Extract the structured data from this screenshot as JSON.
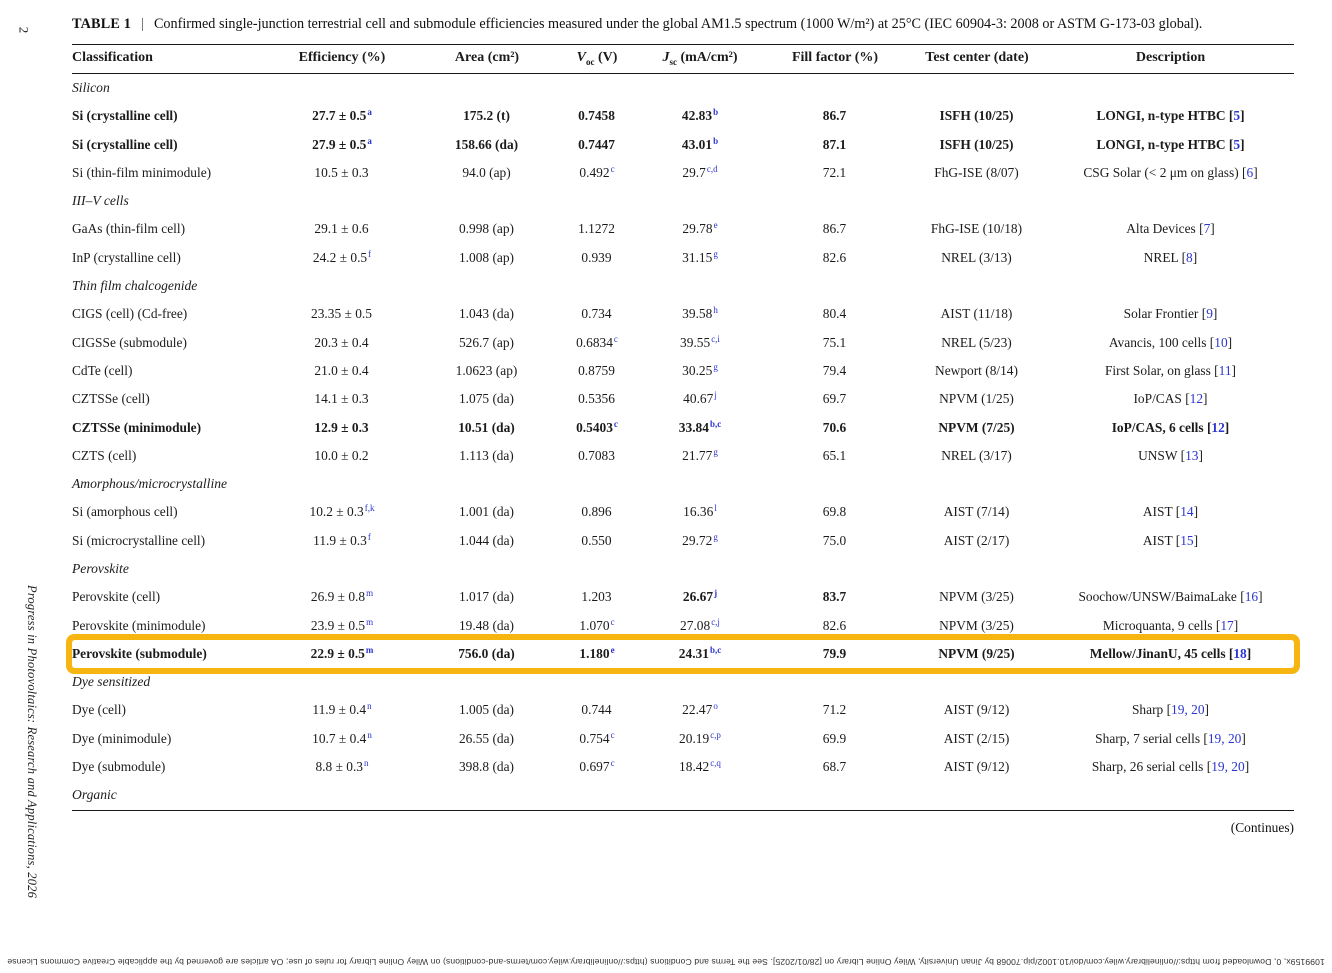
{
  "colors": {
    "highlight_gold": "#F7B512",
    "link_blue": "#2b35cf"
  },
  "page": {
    "page_number": "2",
    "journal_sidebar": "Progress in Photovoltaics: Research and Applications, 2026",
    "footer_rotated": "1099159x, 0, Downloaded from https://onlinelibrary.wiley.com/doi/10.1002/pip.70068 by Jinan University, Wiley Online Library on [28/01/2025]. See the Terms and Conditions (https://onlinelibrary.wiley.com/terms-and-conditions) on Wiley Online Library for rules of use; OA articles are governed by the applicable Creative Commons License",
    "continues": "(Continues)"
  },
  "table": {
    "label": "TABLE 1",
    "separator": "|",
    "caption": "Confirmed single-junction terrestrial cell and submodule efficiencies measured under the global AM1.5 spectrum (1000 W/m²) at 25°C (IEC 60904-3: 2008 or ASTM G-173-03 global).",
    "header": {
      "classification": "Classification",
      "efficiency": "Efficiency (%)",
      "area": "Area (cm²)",
      "voc_pre": "V",
      "voc_sub": "oc",
      "voc_post": " (V)",
      "jsc_pre": "J",
      "jsc_sub": "sc",
      "jsc_post": " (mA/cm²)",
      "fill_factor": "Fill factor (%)",
      "test_center": "Test center (date)",
      "description": "Description"
    },
    "sections": [
      {
        "name": "Silicon",
        "rows": [
          {
            "cls": "Si (crystalline cell)",
            "bold": true,
            "eff": {
              "t": "27.7 ± 0.5",
              "s": "a"
            },
            "area": {
              "t": "175.2 (t)"
            },
            "voc": {
              "t": "0.7458"
            },
            "jsc": {
              "t": "42.83",
              "s": "b"
            },
            "ff": {
              "t": "86.7"
            },
            "tc": {
              "t": "ISFH (10/25)"
            },
            "desc": {
              "t": "LONGI, n-type HTBC",
              "refs": "5"
            }
          },
          {
            "cls": "Si (crystalline cell)",
            "bold": true,
            "eff": {
              "t": "27.9 ± 0.5",
              "s": "a"
            },
            "area": {
              "t": "158.66 (da)"
            },
            "voc": {
              "t": "0.7447"
            },
            "jsc": {
              "t": "43.01",
              "s": "b"
            },
            "ff": {
              "t": "87.1"
            },
            "tc": {
              "t": "ISFH (10/25)"
            },
            "desc": {
              "t": "LONGI, n-type HTBC",
              "refs": "5"
            }
          },
          {
            "cls": "Si (thin-film minimodule)",
            "eff": {
              "t": "10.5 ± 0.3"
            },
            "area": {
              "t": "94.0 (ap)"
            },
            "voc": {
              "t": "0.492",
              "s": "c"
            },
            "jsc": {
              "t": "29.7",
              "s": "c,d"
            },
            "ff": {
              "t": "72.1"
            },
            "tc": {
              "t": "FhG-ISE (8/07)"
            },
            "desc": {
              "t": "CSG Solar (< 2 μm on glass)",
              "refs": "6"
            }
          }
        ]
      },
      {
        "name": "III–V cells",
        "rows": [
          {
            "cls": "GaAs (thin-film cell)",
            "eff": {
              "t": "29.1 ± 0.6"
            },
            "area": {
              "t": "0.998 (ap)"
            },
            "voc": {
              "t": "1.1272"
            },
            "jsc": {
              "t": "29.78",
              "s": "e"
            },
            "ff": {
              "t": "86.7"
            },
            "tc": {
              "t": "FhG-ISE (10/18)"
            },
            "desc": {
              "t": "Alta Devices",
              "refs": "7"
            }
          },
          {
            "cls": "InP (crystalline cell)",
            "eff": {
              "t": "24.2 ± 0.5",
              "s": "f"
            },
            "area": {
              "t": "1.008 (ap)"
            },
            "voc": {
              "t": "0.939"
            },
            "jsc": {
              "t": "31.15",
              "s": "g"
            },
            "ff": {
              "t": "82.6"
            },
            "tc": {
              "t": "NREL (3/13)"
            },
            "desc": {
              "t": "NREL",
              "refs": "8"
            }
          }
        ]
      },
      {
        "name": "Thin film chalcogenide",
        "rows": [
          {
            "cls": "CIGS (cell) (Cd-free)",
            "eff": {
              "t": "23.35 ± 0.5"
            },
            "area": {
              "t": "1.043 (da)"
            },
            "voc": {
              "t": "0.734"
            },
            "jsc": {
              "t": "39.58",
              "s": "h"
            },
            "ff": {
              "t": "80.4"
            },
            "tc": {
              "t": "AIST (11/18)"
            },
            "desc": {
              "t": "Solar Frontier",
              "refs": "9"
            }
          },
          {
            "cls": "CIGSSe (submodule)",
            "eff": {
              "t": "20.3 ± 0.4"
            },
            "area": {
              "t": "526.7 (ap)"
            },
            "voc": {
              "t": "0.6834",
              "s": "c"
            },
            "jsc": {
              "t": "39.55",
              "s": "c,i"
            },
            "ff": {
              "t": "75.1"
            },
            "tc": {
              "t": "NREL (5/23)"
            },
            "desc": {
              "t": "Avancis, 100 cells",
              "refs": "10"
            }
          },
          {
            "cls": "CdTe (cell)",
            "eff": {
              "t": "21.0 ± 0.4"
            },
            "area": {
              "t": "1.0623 (ap)"
            },
            "voc": {
              "t": "0.8759"
            },
            "jsc": {
              "t": "30.25",
              "s": "g"
            },
            "ff": {
              "t": "79.4"
            },
            "tc": {
              "t": "Newport (8/14)"
            },
            "desc": {
              "t": "First Solar, on glass",
              "refs": "11"
            }
          },
          {
            "cls": "CZTSSe (cell)",
            "eff": {
              "t": "14.1 ± 0.3"
            },
            "area": {
              "t": "1.075 (da)"
            },
            "voc": {
              "t": "0.5356"
            },
            "jsc": {
              "t": "40.67",
              "s": "j"
            },
            "ff": {
              "t": "69.7"
            },
            "tc": {
              "t": "NPVM (1/25)"
            },
            "desc": {
              "t": "IoP/CAS",
              "refs": "12"
            }
          },
          {
            "cls": "CZTSSe (minimodule)",
            "bold": true,
            "eff": {
              "t": "12.9 ± 0.3"
            },
            "area": {
              "t": "10.51 (da)"
            },
            "voc": {
              "t": "0.5403",
              "s": "c"
            },
            "jsc": {
              "t": "33.84",
              "s": "b,c"
            },
            "ff": {
              "t": "70.6"
            },
            "tc": {
              "t": "NPVM (7/25)"
            },
            "desc": {
              "t": "IoP/CAS, 6 cells",
              "refs": "12"
            }
          },
          {
            "cls": "CZTS (cell)",
            "eff": {
              "t": "10.0 ± 0.2"
            },
            "area": {
              "t": "1.113 (da)"
            },
            "voc": {
              "t": "0.7083"
            },
            "jsc": {
              "t": "21.77",
              "s": "g"
            },
            "ff": {
              "t": "65.1"
            },
            "tc": {
              "t": "NREL (3/17)"
            },
            "desc": {
              "t": "UNSW",
              "refs": "13"
            }
          }
        ]
      },
      {
        "name": "Amorphous/microcrystalline",
        "rows": [
          {
            "cls": "Si (amorphous cell)",
            "eff": {
              "t": "10.2 ± 0.3",
              "s": "f,k"
            },
            "area": {
              "t": "1.001 (da)"
            },
            "voc": {
              "t": "0.896"
            },
            "jsc": {
              "t": "16.36",
              "s": "l"
            },
            "ff": {
              "t": "69.8"
            },
            "tc": {
              "t": "AIST (7/14)"
            },
            "desc": {
              "t": "AIST",
              "refs": "14"
            }
          },
          {
            "cls": "Si (microcrystalline cell)",
            "eff": {
              "t": "11.9 ± 0.3",
              "s": "f"
            },
            "area": {
              "t": "1.044 (da)"
            },
            "voc": {
              "t": "0.550"
            },
            "jsc": {
              "t": "29.72",
              "s": "g"
            },
            "ff": {
              "t": "75.0"
            },
            "tc": {
              "t": "AIST (2/17)"
            },
            "desc": {
              "t": "AIST",
              "refs": "15"
            }
          }
        ]
      },
      {
        "name": "Perovskite",
        "rows": [
          {
            "cls": "Perovskite (cell)",
            "eff": {
              "t": "26.9 ± 0.8",
              "s": "m"
            },
            "area": {
              "t": "1.017 (da)"
            },
            "voc": {
              "t": "1.203"
            },
            "jsc": {
              "t": "26.67",
              "s": "j",
              "b": true
            },
            "ff": {
              "t": "83.7",
              "b": true
            },
            "tc": {
              "t": "NPVM (3/25)"
            },
            "desc": {
              "t": "Soochow/UNSW/BaimaLake",
              "refs": "16"
            }
          },
          {
            "cls": "Perovskite (minimodule)",
            "eff": {
              "t": "23.9 ± 0.5",
              "s": "m"
            },
            "area": {
              "t": "19.48 (da)"
            },
            "voc": {
              "t": "1.070",
              "s": "c"
            },
            "jsc": {
              "t": "27.08",
              "s": "c,j"
            },
            "ff": {
              "t": "82.6"
            },
            "tc": {
              "t": "NPVM (3/25)"
            },
            "desc": {
              "t": "Microquanta, 9 cells",
              "refs": "17"
            }
          },
          {
            "cls": "Perovskite (submodule)",
            "bold": true,
            "hl": true,
            "eff": {
              "t": "22.9 ± 0.5",
              "s": "m"
            },
            "area": {
              "t": "756.0 (da)"
            },
            "voc": {
              "t": "1.180",
              "s": "e"
            },
            "jsc": {
              "t": "24.31",
              "s": "b,c"
            },
            "ff": {
              "t": "79.9"
            },
            "tc": {
              "t": "NPVM (9/25)"
            },
            "desc": {
              "t": "Mellow/JinanU, 45 cells",
              "refs": "18"
            }
          }
        ]
      },
      {
        "name": "Dye sensitized",
        "rows": [
          {
            "cls": "Dye (cell)",
            "eff": {
              "t": "11.9 ± 0.4",
              "s": "n"
            },
            "area": {
              "t": "1.005 (da)"
            },
            "voc": {
              "t": "0.744"
            },
            "jsc": {
              "t": "22.47",
              "s": "o"
            },
            "ff": {
              "t": "71.2"
            },
            "tc": {
              "t": "AIST (9/12)"
            },
            "desc": {
              "t": "Sharp",
              "refs": "19, 20"
            }
          },
          {
            "cls": "Dye (minimodule)",
            "eff": {
              "t": "10.7 ± 0.4",
              "s": "n"
            },
            "area": {
              "t": "26.55 (da)"
            },
            "voc": {
              "t": "0.754",
              "s": "c"
            },
            "jsc": {
              "t": "20.19",
              "s": "c,p"
            },
            "ff": {
              "t": "69.9"
            },
            "tc": {
              "t": "AIST (2/15)"
            },
            "desc": {
              "t": "Sharp, 7 serial cells",
              "refs": "19, 20"
            }
          },
          {
            "cls": "Dye (submodule)",
            "eff": {
              "t": "8.8 ± 0.3",
              "s": "n"
            },
            "area": {
              "t": "398.8 (da)"
            },
            "voc": {
              "t": "0.697",
              "s": "c"
            },
            "jsc": {
              "t": "18.42",
              "s": "c,q"
            },
            "ff": {
              "t": "68.7"
            },
            "tc": {
              "t": "AIST (9/12)"
            },
            "desc": {
              "t": "Sharp, 26 serial cells",
              "refs": "19, 20"
            }
          }
        ]
      },
      {
        "name": "Organic",
        "rows": []
      }
    ]
  }
}
